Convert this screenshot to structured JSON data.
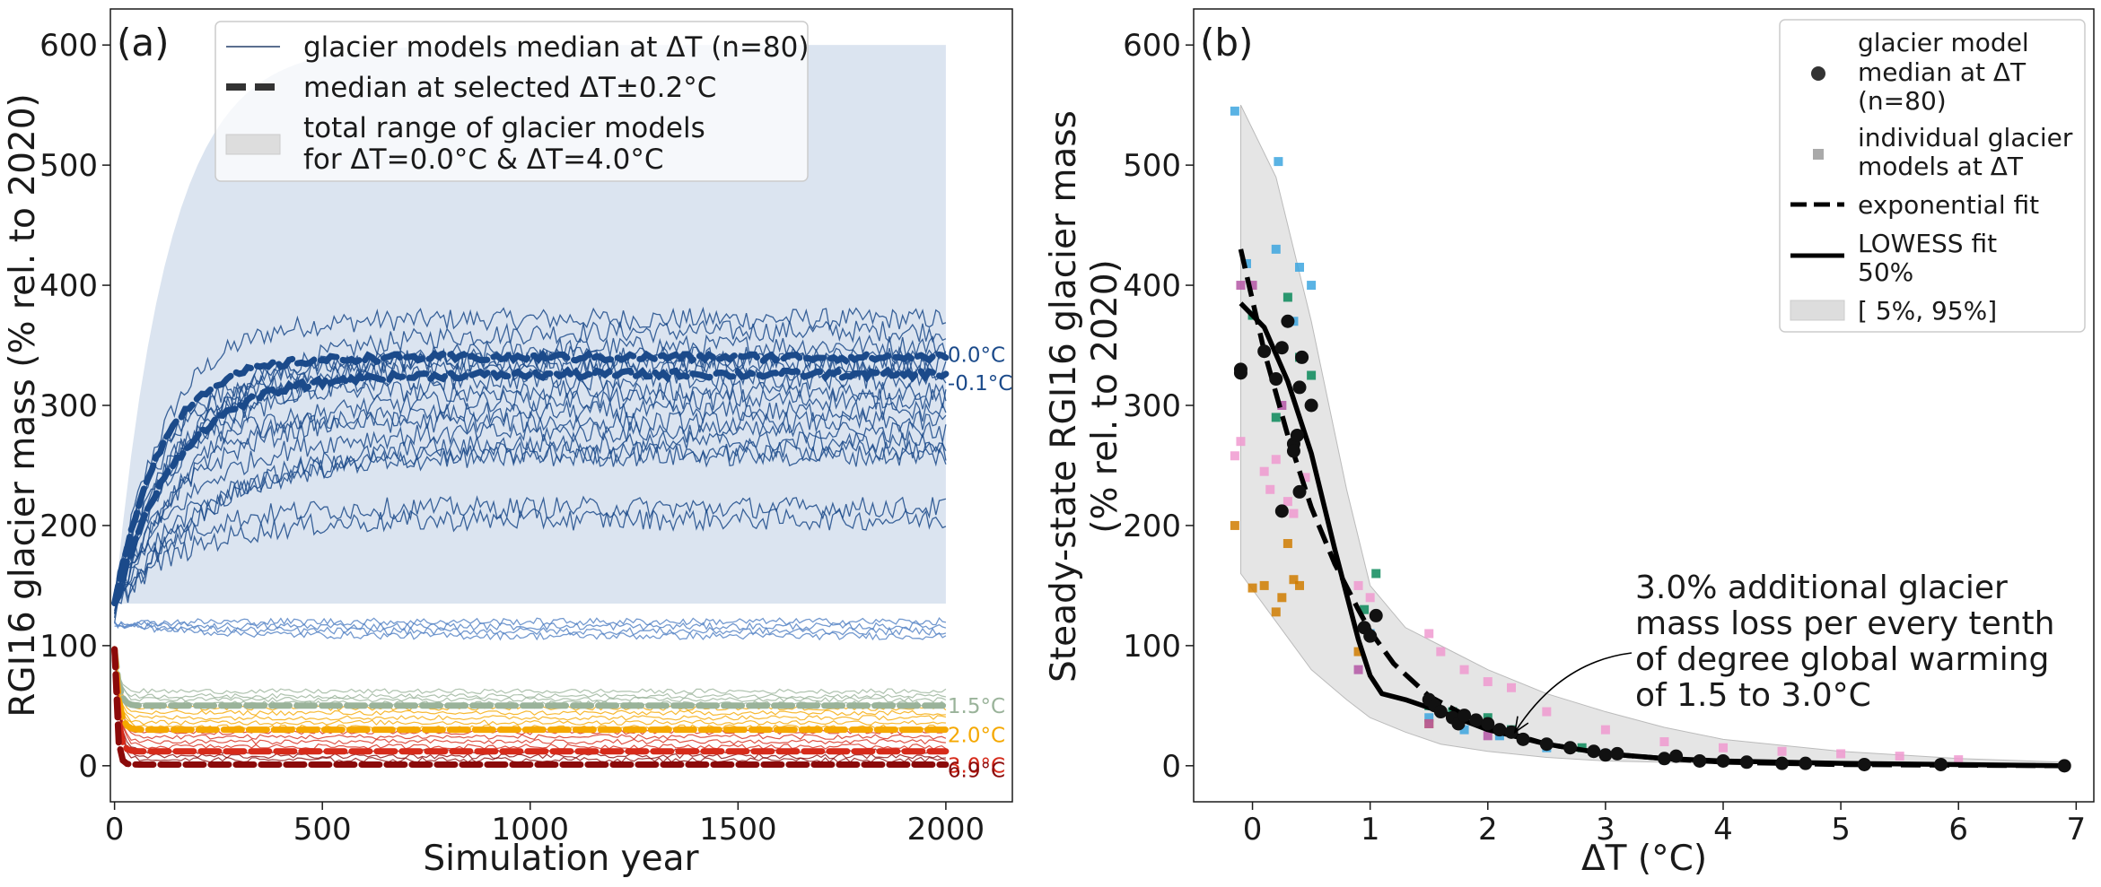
{
  "colors": {
    "blue_dark": "#1b4a8a",
    "blue_light": "#5b87c7",
    "range_fill": "#dbe4f0",
    "green": "#9ab39a",
    "orange": "#f5a800",
    "red": "#d62a1a",
    "darkred": "#8b0a0a",
    "black": "#000000",
    "grey_band": "#d3d3d3",
    "sq_blue": "#3da6df",
    "sq_green": "#0a8a5a",
    "sq_pink": "#f09ad0",
    "sq_orange": "#d07d00",
    "sq_purple": "#b457a6"
  },
  "chart_data": [
    {
      "type": "line",
      "panel_label": "(a)",
      "xlabel": "Simulation year",
      "ylabel": "RGI16 glacier mass (% rel. to 2020)",
      "xlim": [
        -10,
        2160
      ],
      "ylim": [
        -30,
        630
      ],
      "xticks": [
        "0",
        "500",
        "1000",
        "1500",
        "2000"
      ],
      "yticks": [
        "0",
        "100",
        "200",
        "300",
        "400",
        "500",
        "600"
      ],
      "legend_position": "top",
      "legend": [
        {
          "label": "glacier models median at ΔT (n=80)",
          "style": "thin-line"
        },
        {
          "label": "median at selected ΔT±0.2°C",
          "style": "thick-dashed"
        },
        {
          "label_line1": "total range of glacier models",
          "label_line2": "for ΔT=0.0°C & ΔT=4.0°C",
          "style": "patch"
        }
      ],
      "range_band": {
        "x_start": 0,
        "x_end": 2000,
        "upper": 600,
        "lower": 135
      },
      "series": [
        {
          "name": "0.0°C",
          "start": 133,
          "final": 340,
          "tau": 110,
          "color": "blue_dark"
        },
        {
          "name": "-0.1°C",
          "start": 133,
          "final": 326,
          "tau": 150,
          "color": "blue_dark"
        },
        {
          "name": "1.5°C",
          "start": 97,
          "final": 50,
          "tau": 10,
          "color": "green"
        },
        {
          "name": "2.0°C",
          "start": 97,
          "final": 30,
          "tau": 10,
          "color": "orange"
        },
        {
          "name": "3.0°C",
          "start": 97,
          "final": 12,
          "tau": 8,
          "color": "red"
        },
        {
          "name": "6.9°C",
          "start": 97,
          "final": 1,
          "tau": 6,
          "color": "darkred"
        }
      ],
      "individual_plateaus": [
        372,
        362,
        350,
        340,
        336,
        330,
        322,
        312,
        305,
        295,
        286,
        278,
        270,
        262,
        258,
        215,
        205,
        120,
        116,
        112,
        108
      ],
      "low_bundle_plateaus": [
        62,
        58,
        55,
        52,
        48,
        44,
        40,
        36,
        32,
        28,
        24,
        20,
        16,
        12,
        8,
        5
      ]
    },
    {
      "type": "scatter",
      "panel_label": "(b)",
      "xlabel": "ΔT (°C)",
      "ylabel_line1": "Steady-state RGI16 glacier mass",
      "ylabel_line2": "(% rel. to 2020)",
      "xlim": [
        -0.5,
        7.15
      ],
      "ylim": [
        -30,
        630
      ],
      "xticks": [
        "0",
        "1",
        "2",
        "3",
        "4",
        "5",
        "6",
        "7"
      ],
      "yticks": [
        "0",
        "100",
        "200",
        "300",
        "400",
        "500",
        "600"
      ],
      "legend_position": "top-right",
      "legend": [
        {
          "lines": [
            "glacier model",
            "median at ΔT",
            "(n=80)"
          ],
          "style": "circle"
        },
        {
          "lines": [
            "individual glacier",
            "models at ΔT"
          ],
          "style": "square"
        },
        {
          "lines": [
            "exponential fit"
          ],
          "style": "dashed"
        },
        {
          "lines": [
            "LOWESS fit",
            "50%"
          ],
          "style": "solid"
        },
        {
          "lines": [
            "[ 5%, 95%]"
          ],
          "style": "patch"
        }
      ],
      "annotation": {
        "lines": [
          "3.0% additional glacier",
          "mass loss per every tenth",
          "of degree global warming",
          "of 1.5 to 3.0°C"
        ],
        "arrow_target": [
          2.2,
          25
        ]
      },
      "band_upper": [
        [
          -0.1,
          550
        ],
        [
          0.2,
          490
        ],
        [
          0.5,
          370
        ],
        [
          0.8,
          230
        ],
        [
          1.0,
          150
        ],
        [
          1.3,
          115
        ],
        [
          1.6,
          100
        ],
        [
          2.0,
          80
        ],
        [
          2.5,
          60
        ],
        [
          3.0,
          45
        ],
        [
          3.5,
          32
        ],
        [
          4.0,
          22
        ],
        [
          5.0,
          12
        ],
        [
          6.0,
          6
        ],
        [
          6.9,
          3
        ]
      ],
      "band_lower": [
        [
          -0.1,
          160
        ],
        [
          0.2,
          120
        ],
        [
          0.5,
          80
        ],
        [
          0.8,
          55
        ],
        [
          1.0,
          40
        ],
        [
          1.3,
          28
        ],
        [
          1.6,
          18
        ],
        [
          2.0,
          12
        ],
        [
          2.5,
          7
        ],
        [
          3.0,
          4
        ],
        [
          4.0,
          2
        ],
        [
          5.0,
          1
        ],
        [
          6.9,
          0
        ]
      ],
      "lowess": [
        [
          -0.1,
          385
        ],
        [
          0.1,
          365
        ],
        [
          0.3,
          320
        ],
        [
          0.5,
          260
        ],
        [
          0.7,
          180
        ],
        [
          0.9,
          105
        ],
        [
          1.0,
          75
        ],
        [
          1.1,
          60
        ],
        [
          1.3,
          55
        ],
        [
          1.6,
          45
        ],
        [
          2.0,
          30
        ],
        [
          2.5,
          18
        ],
        [
          3.0,
          10
        ],
        [
          3.5,
          6
        ],
        [
          4.0,
          4
        ],
        [
          5.0,
          2
        ],
        [
          6.0,
          1
        ],
        [
          6.9,
          0
        ]
      ],
      "exp_fit": [
        [
          -0.1,
          430
        ],
        [
          0.1,
          345
        ],
        [
          0.3,
          275
        ],
        [
          0.5,
          215
        ],
        [
          0.7,
          168
        ],
        [
          0.9,
          130
        ],
        [
          1.0,
          112
        ],
        [
          1.2,
          85
        ],
        [
          1.5,
          58
        ],
        [
          2.0,
          32
        ],
        [
          2.5,
          18
        ],
        [
          3.0,
          10
        ],
        [
          3.5,
          6
        ],
        [
          4.0,
          3
        ],
        [
          5.0,
          1
        ],
        [
          6.9,
          0
        ]
      ],
      "medians": [
        [
          -0.1,
          330
        ],
        [
          -0.1,
          327
        ],
        [
          0.1,
          345
        ],
        [
          0.2,
          322
        ],
        [
          0.25,
          348
        ],
        [
          0.25,
          212
        ],
        [
          0.3,
          370
        ],
        [
          0.35,
          268
        ],
        [
          0.35,
          262
        ],
        [
          0.38,
          275
        ],
        [
          0.4,
          315
        ],
        [
          0.4,
          228
        ],
        [
          0.42,
          340
        ],
        [
          0.5,
          300
        ],
        [
          0.95,
          115
        ],
        [
          1.0,
          108
        ],
        [
          1.05,
          125
        ],
        [
          1.5,
          55
        ],
        [
          1.55,
          50
        ],
        [
          1.6,
          45
        ],
        [
          1.7,
          40
        ],
        [
          1.75,
          35
        ],
        [
          1.8,
          42
        ],
        [
          1.9,
          38
        ],
        [
          2.0,
          35
        ],
        [
          2.1,
          30
        ],
        [
          2.2,
          28
        ],
        [
          2.3,
          22
        ],
        [
          2.5,
          18
        ],
        [
          2.7,
          15
        ],
        [
          2.9,
          12
        ],
        [
          3.0,
          9
        ],
        [
          3.1,
          10
        ],
        [
          3.5,
          6
        ],
        [
          3.6,
          8
        ],
        [
          3.8,
          4
        ],
        [
          4.0,
          4
        ],
        [
          4.2,
          3
        ],
        [
          4.5,
          2
        ],
        [
          4.7,
          2
        ],
        [
          5.2,
          1
        ],
        [
          5.85,
          1
        ],
        [
          6.9,
          0
        ]
      ],
      "squares": [
        {
          "color": "sq_blue",
          "points": [
            [
              -0.15,
              545
            ],
            [
              0.22,
              503
            ],
            [
              -0.05,
              418
            ],
            [
              0.2,
              430
            ],
            [
              0.4,
              415
            ],
            [
              0.5,
              400
            ],
            [
              0.35,
              370
            ],
            [
              1.0,
              110
            ],
            [
              1.5,
              40
            ],
            [
              1.8,
              30
            ],
            [
              2.1,
              25
            ],
            [
              2.5,
              15
            ],
            [
              3.0,
              10
            ],
            [
              3.5,
              5
            ]
          ]
        },
        {
          "color": "sq_green",
          "points": [
            [
              0.0,
              375
            ],
            [
              0.3,
              390
            ],
            [
              0.4,
              340
            ],
            [
              0.5,
              325
            ],
            [
              0.2,
              290
            ],
            [
              0.95,
              130
            ],
            [
              1.05,
              160
            ],
            [
              1.5,
              50
            ],
            [
              1.7,
              45
            ],
            [
              2.0,
              40
            ],
            [
              2.2,
              30
            ],
            [
              2.8,
              15
            ]
          ]
        },
        {
          "color": "sq_pink",
          "points": [
            [
              -0.1,
              270
            ],
            [
              -0.15,
              258
            ],
            [
              0.1,
              245
            ],
            [
              0.15,
              230
            ],
            [
              0.2,
              255
            ],
            [
              0.3,
              220
            ],
            [
              0.35,
              210
            ],
            [
              0.45,
              240
            ],
            [
              0.9,
              150
            ],
            [
              1.0,
              140
            ],
            [
              1.5,
              110
            ],
            [
              1.6,
              95
            ],
            [
              1.8,
              80
            ],
            [
              2.0,
              70
            ],
            [
              2.2,
              65
            ],
            [
              2.5,
              45
            ],
            [
              3.0,
              30
            ],
            [
              3.5,
              20
            ],
            [
              4.0,
              15
            ],
            [
              4.5,
              12
            ],
            [
              5.0,
              10
            ],
            [
              5.5,
              8
            ],
            [
              6.0,
              5
            ]
          ]
        },
        {
          "color": "sq_orange",
          "points": [
            [
              -0.15,
              200
            ],
            [
              0.0,
              148
            ],
            [
              0.1,
              150
            ],
            [
              0.2,
              128
            ],
            [
              0.25,
              140
            ],
            [
              0.3,
              185
            ],
            [
              0.35,
              155
            ],
            [
              0.4,
              150
            ],
            [
              0.9,
              95
            ],
            [
              1.5,
              35
            ]
          ]
        },
        {
          "color": "sq_purple",
          "points": [
            [
              -0.1,
              400
            ],
            [
              0.0,
              400
            ],
            [
              0.25,
              300
            ],
            [
              0.9,
              80
            ],
            [
              1.5,
              35
            ],
            [
              2.0,
              25
            ]
          ]
        }
      ]
    }
  ]
}
